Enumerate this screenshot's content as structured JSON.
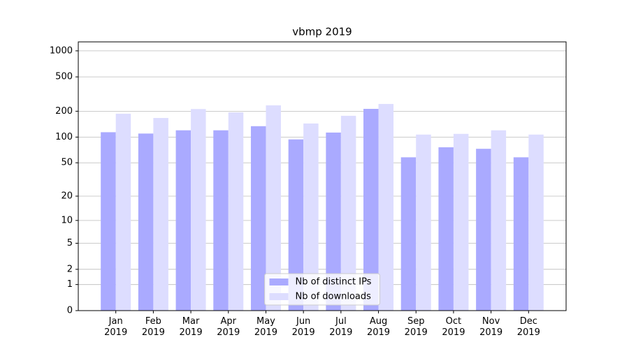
{
  "chart_data": {
    "type": "bar",
    "title": "vbmp 2019",
    "categories": [
      "Jan\n2019",
      "Feb\n2019",
      "Mar\n2019",
      "Apr\n2019",
      "May\n2019",
      "Jun\n2019",
      "Jul\n2019",
      "Aug\n2019",
      "Sep\n2019",
      "Oct\n2019",
      "Nov\n2019",
      "Dec\n2019"
    ],
    "series": [
      {
        "name": "Nb of distinct IPs",
        "color": "#aaaaff",
        "values": [
          114,
          110,
          120,
          120,
          134,
          94,
          113,
          213,
          58,
          76,
          73,
          58
        ]
      },
      {
        "name": "Nb of downloads",
        "color": "#ddddff",
        "values": [
          187,
          167,
          212,
          194,
          234,
          144,
          177,
          243,
          107,
          109,
          120,
          107
        ]
      }
    ],
    "yscale": "log1p",
    "ylim": [
      0,
      1270
    ],
    "yticks": [
      0,
      1,
      2,
      5,
      10,
      20,
      50,
      100,
      200,
      500,
      1000
    ],
    "grid": true,
    "legend": "lower center"
  }
}
